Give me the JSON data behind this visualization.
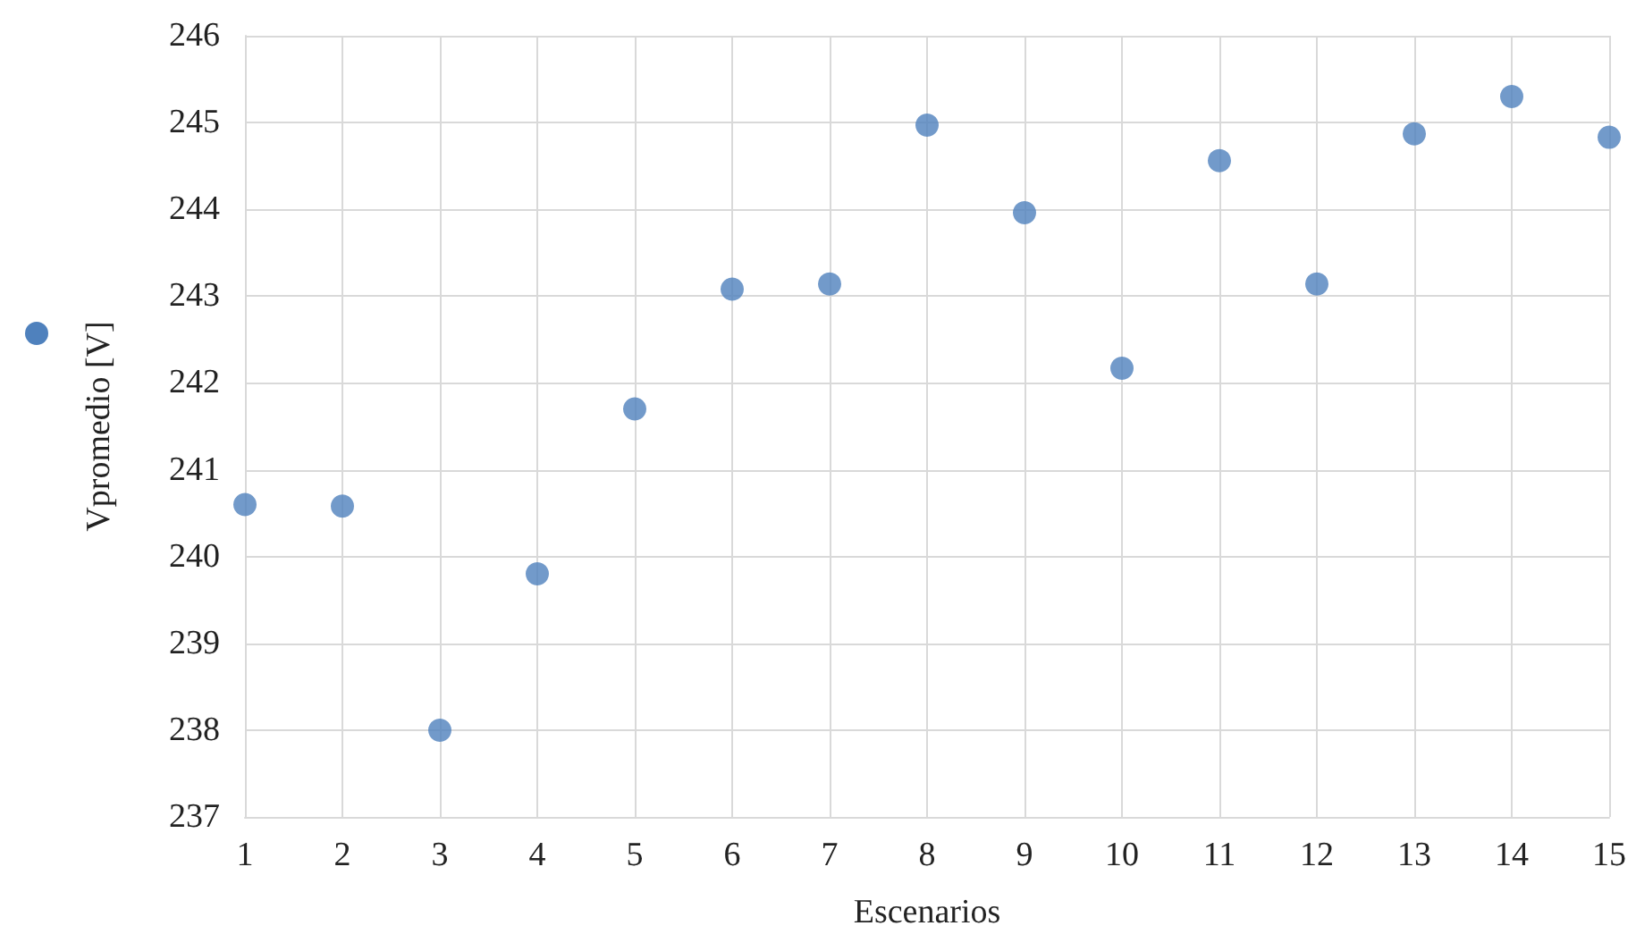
{
  "chart_data": {
    "type": "scatter",
    "xlabel": "Escenarios",
    "ylabel": "Vpromedio [V]",
    "x": [
      1,
      2,
      3,
      4,
      5,
      6,
      7,
      8,
      9,
      10,
      11,
      12,
      13,
      14,
      15
    ],
    "series": [
      {
        "color": "#4f81bd",
        "values": [
          240.6,
          240.58,
          238.0,
          239.8,
          241.7,
          243.08,
          243.14,
          244.97,
          243.96,
          242.17,
          244.56,
          243.14,
          244.87,
          245.3,
          244.83
        ]
      }
    ],
    "xlim": [
      1,
      15
    ],
    "xticks": [
      1,
      2,
      3,
      4,
      5,
      6,
      7,
      8,
      9,
      10,
      11,
      12,
      13,
      14,
      15
    ],
    "ylim": [
      237,
      246
    ],
    "yticks": [
      237,
      238,
      239,
      240,
      241,
      242,
      243,
      244,
      245,
      246
    ],
    "grid": true,
    "marker": "circle"
  }
}
